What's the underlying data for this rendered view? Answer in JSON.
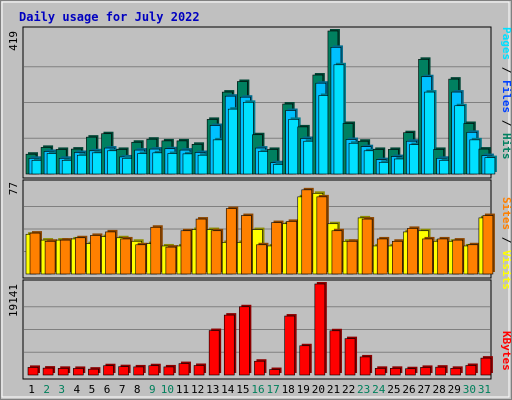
{
  "chart_data": {
    "type": "bar",
    "title": "Daily usage for July 2022",
    "categories": [
      "1",
      "2",
      "3",
      "4",
      "5",
      "6",
      "7",
      "8",
      "9",
      "10",
      "11",
      "12",
      "13",
      "14",
      "15",
      "16",
      "17",
      "18",
      "19",
      "20",
      "21",
      "22",
      "23",
      "24",
      "25",
      "26",
      "27",
      "28",
      "29",
      "30",
      "31"
    ],
    "weekend_days": [
      "2",
      "3",
      "9",
      "10",
      "16",
      "17",
      "23",
      "24",
      "30",
      "31"
    ],
    "colors": {
      "hits": "#008060",
      "files": "#00c0ff",
      "pages": "#00e0ff",
      "visits": "#ffff00",
      "sites": "#ff8000",
      "kbytes": "#ff0000",
      "weekday_label": "#000000",
      "weekend_label": "#00805c",
      "title": "#0000c0",
      "panel_bg": "#c0c0c0",
      "plot_bg": "#c0c0c0"
    },
    "panels": [
      {
        "id": "hits-files-pages",
        "scale_max_label": "419",
        "scale_max": 419,
        "right_labels": [
          {
            "text": "Pages",
            "color": "#00e0ff"
          },
          {
            "text": "/",
            "color": "#000000"
          },
          {
            "text": "Files",
            "color": "#0040ff"
          },
          {
            "text": "/",
            "color": "#000000"
          },
          {
            "text": "Hits",
            "color": "#008060"
          }
        ],
        "series": [
          {
            "name": "Hits",
            "color": "#008060",
            "values": [
              58,
              78,
              72,
              73,
              108,
              118,
              72,
              93,
              102,
              97,
              97,
              87,
              160,
              240,
              271,
              115,
              72,
              205,
              138,
              290,
              419,
              148,
              96,
              72,
              72,
              121,
              336,
              72,
              278,
              148,
              73
            ]
          },
          {
            "name": "Files",
            "color": "#00c0ff",
            "values": [
              46,
              66,
              46,
              63,
              68,
              76,
              50,
              70,
              73,
              74,
              70,
              63,
              142,
              228,
              225,
              76,
              33,
              186,
              104,
              266,
              371,
              101,
              80,
              42,
              51,
              96,
              285,
              46,
              240,
              122,
              54
            ]
          },
          {
            "name": "Pages",
            "color": "#00e0ff",
            "values": [
              40,
              60,
              40,
              55,
              62,
              68,
              46,
              60,
              62,
              60,
              59,
              55,
              100,
              190,
              210,
              66,
              28,
              160,
              96,
              230,
              320,
              90,
              68,
              34,
              44,
              86,
              240,
              40,
              200,
              100,
              48
            ]
          }
        ]
      },
      {
        "id": "visits-sites",
        "scale_max_label": "77",
        "scale_max": 77,
        "right_labels": [
          {
            "text": "Sites",
            "color": "#ff8000"
          },
          {
            "text": "/",
            "color": "#000000"
          },
          {
            "text": "Visits",
            "color": "#ffff00"
          }
        ],
        "series": [
          {
            "name": "Visits",
            "color": "#ffff00",
            "values": [
              34,
              29,
              29,
              30,
              26,
              32,
              31,
              28,
              26,
              24,
              24,
              38,
              38,
              27,
              27,
              38,
              24,
              43,
              66,
              69,
              43,
              28,
              48,
              24,
              24,
              36,
              37,
              28,
              28,
              24,
              48
            ]
          },
          {
            "name": "Sites",
            "color": "#ff8000",
            "values": [
              35,
              28,
              29,
              31,
              33,
              36,
              30,
              25,
              40,
              23,
              37,
              47,
              37,
              56,
              50,
              25,
              44,
              45,
              72,
              66,
              37,
              28,
              47,
              30,
              28,
              39,
              30,
              30,
              29,
              25,
              50
            ]
          }
        ]
      },
      {
        "id": "kbytes",
        "scale_max_label": "19141",
        "scale_max": 19141,
        "right_labels": [
          {
            "text": "KBytes",
            "color": "#ff0000"
          }
        ],
        "series": [
          {
            "name": "KBytes",
            "color": "#ff0000",
            "values": [
              1600,
              1450,
              1400,
              1380,
              1230,
              1950,
              1750,
              1700,
              1950,
              1700,
              2400,
              2000,
              9350,
              12600,
              14350,
              2900,
              1150,
              12400,
              6150,
              19141,
              9300,
              7650,
              3800,
              1400,
              1400,
              1320,
              1600,
              1650,
              1400,
              2000,
              3550
            ]
          }
        ]
      }
    ]
  }
}
